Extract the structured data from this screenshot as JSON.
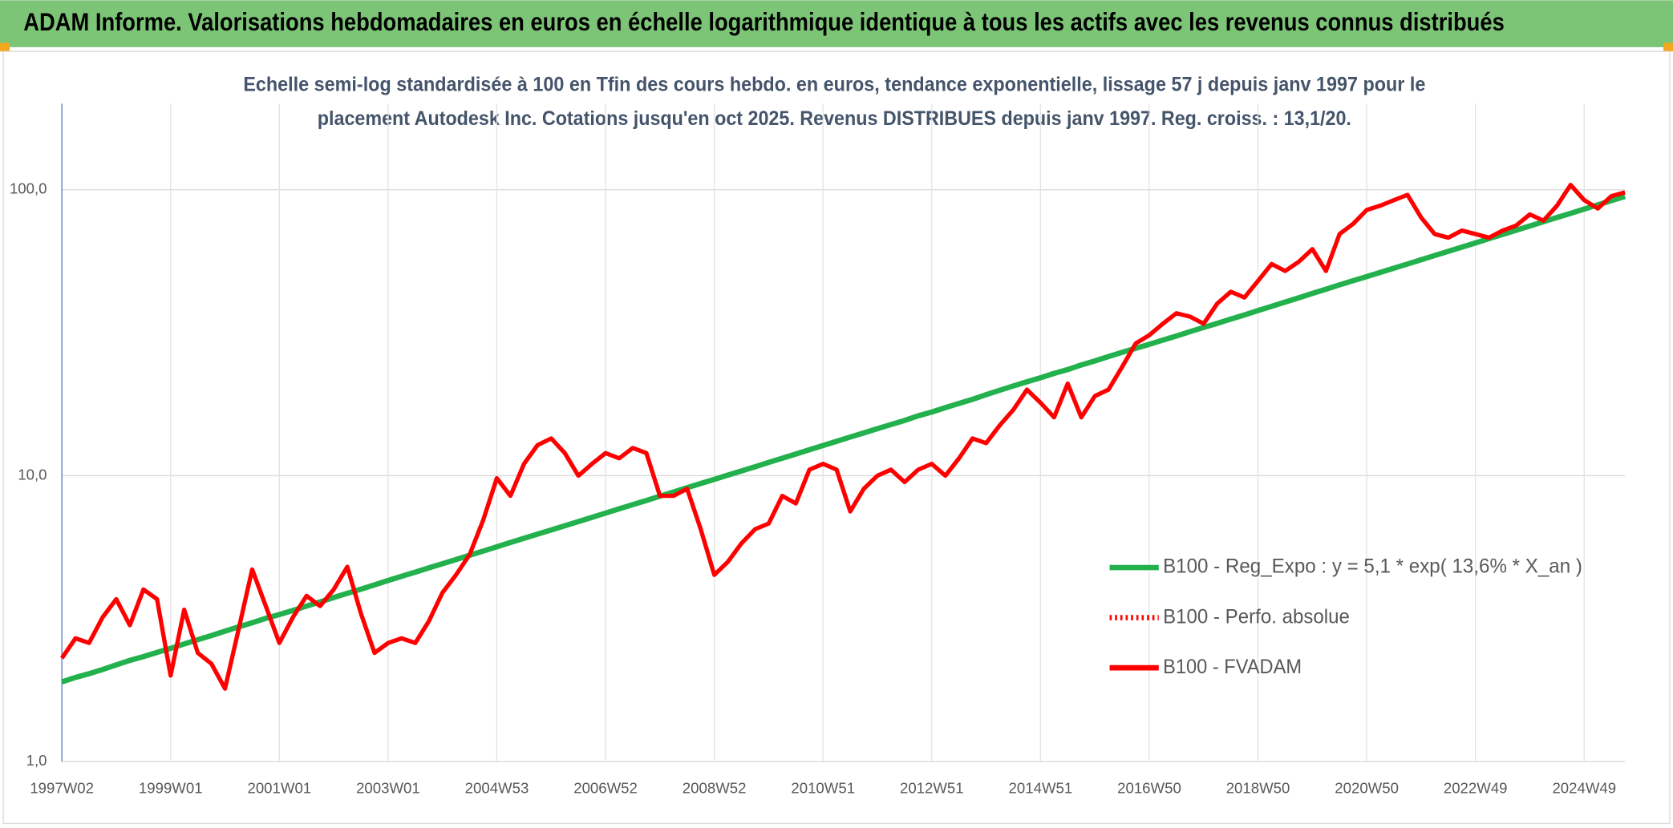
{
  "chart_data": {
    "type": "line",
    "title": "ADAM Informe. Valorisations hebdomadaires en euros en échelle logarithmique identique à tous les actifs avec les revenus connus distribués",
    "subtitle": [
      "Echelle semi-log standardisée à 100 en Tfin des cours hebdo. en euros, tendance exponentielle, lissage 57 j depuis janv 1997 pour le",
      "placement Autodesk Inc. Cotations jusqu'en oct 2025. Revenus DISTRIBUES depuis janv 1997. Reg. croiss. : 13,1/20."
    ],
    "categories": [
      "1997W02",
      null,
      null,
      null,
      null,
      null,
      null,
      null,
      "1999W01",
      null,
      null,
      null,
      null,
      null,
      null,
      null,
      "2001W01",
      null,
      null,
      null,
      null,
      null,
      null,
      null,
      "2003W01",
      null,
      null,
      null,
      null,
      null,
      null,
      null,
      "2004W53",
      null,
      null,
      null,
      null,
      null,
      null,
      null,
      "2006W52",
      null,
      null,
      null,
      null,
      null,
      null,
      null,
      "2008W52",
      null,
      null,
      null,
      null,
      null,
      null,
      null,
      "2010W51",
      null,
      null,
      null,
      null,
      null,
      null,
      null,
      "2012W51",
      null,
      null,
      null,
      null,
      null,
      null,
      null,
      "2014W51",
      null,
      null,
      null,
      null,
      null,
      null,
      null,
      "2016W50",
      null,
      null,
      null,
      null,
      null,
      null,
      null,
      "2018W50",
      null,
      null,
      null,
      null,
      null,
      null,
      null,
      "2020W50",
      null,
      null,
      null,
      null,
      null,
      null,
      null,
      "2022W49",
      null,
      null,
      null,
      null,
      null,
      null,
      null,
      "2024W49",
      null,
      null,
      null
    ],
    "log_y": true,
    "grid": true,
    "ylim": [
      1,
      200
    ],
    "yticks": [
      {
        "value": 1,
        "label": "1,0"
      },
      {
        "value": 10,
        "label": "10,0"
      },
      {
        "value": 100,
        "label": "100,0"
      }
    ],
    "series": [
      {
        "name": "B100 - Reg_Expo : y = 5,1 * exp( 13,6% *  X_an )",
        "color": "#22b14c",
        "style": "solid",
        "values": [
          1.9,
          1.97,
          2.03,
          2.1,
          2.18,
          2.26,
          2.33,
          2.41,
          2.49,
          2.58,
          2.67,
          2.76,
          2.86,
          2.96,
          3.06,
          3.17,
          3.27,
          3.38,
          3.5,
          3.62,
          3.75,
          3.88,
          4.01,
          4.15,
          4.3,
          4.45,
          4.6,
          4.76,
          4.92,
          5.09,
          5.27,
          5.45,
          5.64,
          5.84,
          6.04,
          6.25,
          6.46,
          6.68,
          6.91,
          7.15,
          7.4,
          7.66,
          7.92,
          8.19,
          8.48,
          8.77,
          9.08,
          9.39,
          9.71,
          10.05,
          10.39,
          10.75,
          11.13,
          11.51,
          11.91,
          12.33,
          12.75,
          13.19,
          13.65,
          14.12,
          14.6,
          15.1,
          15.6,
          16.2,
          16.7,
          17.3,
          17.9,
          18.5,
          19.2,
          19.9,
          20.6,
          21.3,
          22.0,
          22.8,
          23.5,
          24.4,
          25.2,
          26.1,
          27.0,
          27.9,
          28.8,
          29.8,
          30.8,
          31.9,
          33.0,
          34.1,
          35.3,
          36.5,
          37.8,
          39.1,
          40.5,
          41.9,
          43.4,
          44.9,
          46.5,
          48.1,
          49.7,
          51.4,
          53.2,
          55.0,
          56.9,
          58.9,
          60.9,
          63.0,
          65.2,
          67.5,
          69.8,
          72.2,
          74.7,
          77.3,
          80.0,
          82.7,
          85.6,
          88.6,
          91.6,
          94.8
        ]
      },
      {
        "name": "B100 - Perfo. absolue",
        "color": "#ff0000",
        "style": "dotted"
      },
      {
        "name": "B100 - FVADAM",
        "color": "#ff0000",
        "style": "solid",
        "values": [
          2.3,
          2.7,
          2.6,
          3.2,
          3.7,
          3.0,
          4.0,
          3.7,
          2.0,
          3.4,
          2.4,
          2.2,
          1.8,
          2.9,
          4.7,
          3.5,
          2.6,
          3.2,
          3.8,
          3.5,
          4.0,
          4.8,
          3.3,
          2.4,
          2.6,
          2.7,
          2.6,
          3.1,
          3.9,
          4.5,
          5.3,
          7.0,
          9.8,
          8.5,
          11.0,
          12.8,
          13.5,
          12.0,
          10.0,
          11.0,
          12.0,
          11.5,
          12.5,
          12.0,
          8.5,
          8.5,
          9.0,
          6.5,
          4.5,
          5.0,
          5.8,
          6.5,
          6.8,
          8.5,
          8.0,
          10.5,
          11.0,
          10.5,
          7.5,
          9.0,
          10.0,
          10.5,
          9.5,
          10.5,
          11.0,
          10.0,
          11.5,
          13.5,
          13.0,
          15.0,
          17.0,
          20.0,
          18.0,
          16.0,
          21.0,
          16.0,
          19.0,
          20.0,
          24.0,
          29.0,
          31.0,
          34.0,
          37.0,
          36.0,
          34.0,
          40.0,
          44.0,
          42.0,
          48.0,
          55.0,
          52.0,
          56.0,
          62.0,
          52.0,
          70.0,
          76.0,
          85.0,
          88.0,
          92.0,
          96.0,
          80.0,
          70.0,
          68.0,
          72.0,
          70.0,
          68.0,
          72.0,
          75.0,
          82.0,
          78.0,
          88.0,
          104.0,
          92.0,
          86.0,
          95.0,
          98.0
        ]
      }
    ]
  }
}
